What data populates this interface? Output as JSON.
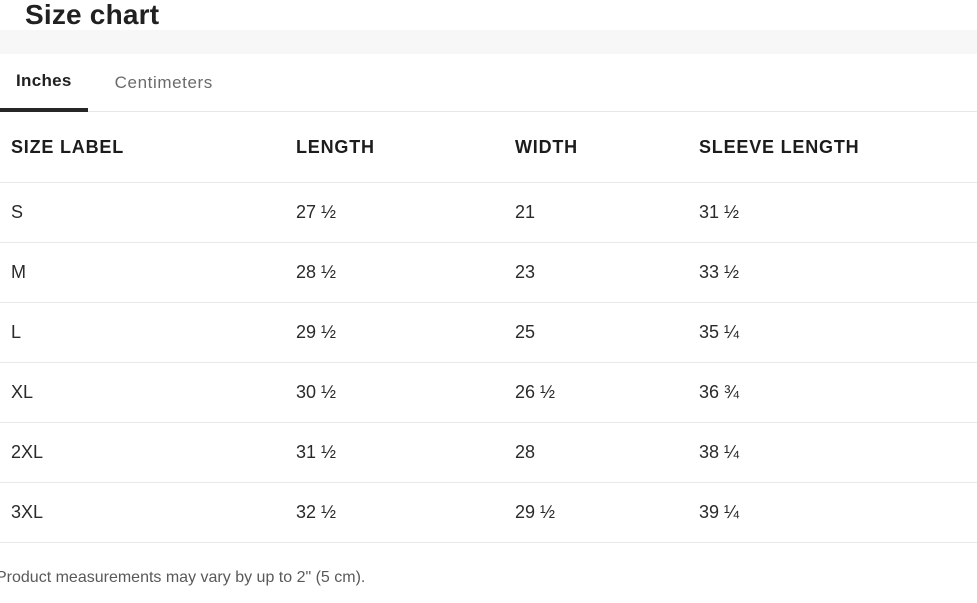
{
  "title": "Size chart",
  "tabs": [
    {
      "label": "Inches",
      "active": true
    },
    {
      "label": "Centimeters",
      "active": false
    }
  ],
  "table": {
    "columns": [
      "SIZE LABEL",
      "LENGTH",
      "WIDTH",
      "SLEEVE LENGTH"
    ],
    "rows": [
      {
        "cells": [
          "S",
          "27 ½",
          "21",
          "31 ½"
        ]
      },
      {
        "cells": [
          "M",
          "28 ½",
          "23",
          "33 ½"
        ]
      },
      {
        "cells": [
          "L",
          "29 ½",
          "25",
          "35 ¼"
        ]
      },
      {
        "cells": [
          "XL",
          "30 ½",
          "26 ½",
          "36 ¾"
        ]
      },
      {
        "cells": [
          "2XL",
          "31 ½",
          "28",
          "38 ¼"
        ]
      },
      {
        "cells": [
          "3XL",
          "32 ½",
          "29 ½",
          "39 ¼"
        ]
      }
    ]
  },
  "note": "Product measurements may vary by up to 2\" (5 cm).",
  "units": {
    "selected": "Inches"
  },
  "colors": {
    "text_dark": "#212121",
    "text_gray": "#6b6b6b",
    "note_gray": "#595959",
    "band_background": "#f7f7f7",
    "divider": "#e8e8e8",
    "active_tab_underline": "#262626"
  }
}
